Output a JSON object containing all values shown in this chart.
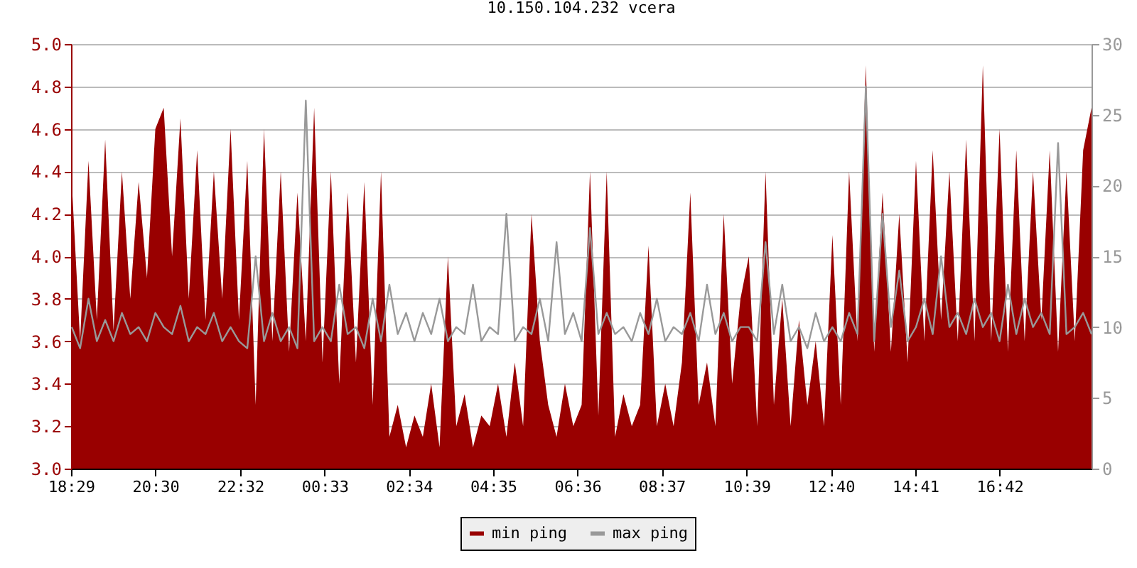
{
  "chart_data": {
    "type": "area",
    "title": "10.150.104.232 vcera",
    "x": [
      "--01-01T18:30",
      "--01-01T18:42",
      "--01-01T18:54",
      "--01-01T19:06",
      "--01-01T19:18",
      "--01-01T19:30",
      "--01-01T19:42",
      "--01-01T19:54",
      "--01-01T20:06",
      "--01-01T20:18",
      "--01-01T20:30",
      "--01-01T20:42",
      "--01-01T20:54",
      "--01-01T21:06",
      "--01-01T21:18",
      "--01-01T21:30",
      "--01-01T21:42",
      "--01-01T21:54",
      "--01-01T22:06",
      "--01-01T22:18",
      "--01-01T22:30",
      "--01-01T22:42",
      "--01-01T22:54",
      "--01-01T23:06",
      "--01-01T23:18",
      "--01-01T23:30",
      "--01-01T23:42",
      "--01-01T23:54",
      "--01-02T00:06",
      "--01-02T00:18",
      "--01-02T00:30",
      "--01-02T00:42",
      "--01-02T00:54",
      "--01-02T01:06",
      "--01-02T01:18",
      "--01-02T01:30",
      "--01-02T01:42",
      "--01-02T01:54",
      "--01-02T02:06",
      "--01-02T02:18",
      "--01-02T02:30",
      "--01-02T02:42",
      "--01-02T02:54",
      "--01-02T03:06",
      "--01-02T03:18",
      "--01-02T03:30",
      "--01-02T03:42",
      "--01-02T03:54",
      "--01-02T04:06",
      "--01-02T04:18",
      "--01-02T04:30",
      "--01-02T04:42",
      "--01-02T04:54",
      "--01-02T05:06",
      "--01-02T05:18",
      "--01-02T05:30",
      "--01-02T05:42",
      "--01-02T05:54",
      "--01-02T06:06",
      "--01-02T06:18",
      "--01-02T06:30",
      "--01-02T06:42",
      "--01-02T06:54",
      "--01-02T07:06",
      "--01-02T07:18",
      "--01-02T07:30",
      "--01-02T07:42",
      "--01-02T07:54",
      "--01-02T08:06",
      "--01-02T08:18",
      "--01-02T08:30",
      "--01-02T08:42",
      "--01-02T08:54",
      "--01-02T09:06",
      "--01-02T09:18",
      "--01-02T09:30",
      "--01-02T09:42",
      "--01-02T09:54",
      "--01-02T10:06",
      "--01-02T10:18",
      "--01-02T10:30",
      "--01-02T10:42",
      "--01-02T10:54",
      "--01-02T11:06",
      "--01-02T11:18",
      "--01-02T11:30",
      "--01-02T11:42",
      "--01-02T11:54",
      "--01-02T12:06",
      "--01-02T12:18",
      "--01-02T12:30",
      "--01-02T12:42",
      "--01-02T12:54",
      "--01-02T13:06",
      "--01-02T13:18",
      "--01-02T13:30",
      "--01-02T13:42",
      "--01-02T13:54",
      "--01-02T14:06",
      "--01-02T14:18",
      "--01-02T14:30",
      "--01-02T14:42",
      "--01-02T14:54",
      "--01-02T15:06",
      "--01-02T15:18",
      "--01-02T15:30",
      "--01-02T15:42",
      "--01-02T15:54",
      "--01-02T16:06",
      "--01-02T16:18",
      "--01-02T16:30",
      "--01-02T16:42",
      "--01-02T16:54",
      "--01-02T17:06",
      "--01-02T17:18",
      "--01-02T17:30",
      "--01-02T17:42",
      "--01-02T17:54",
      "--01-02T18:06",
      "--01-02T18:18",
      "--01-02T18:30",
      "--01-02T18:42",
      "--01-02T18:54"
    ],
    "series": [
      {
        "name": "min ping",
        "color": "#990000",
        "values": [
          4.35,
          3.6,
          4.45,
          3.7,
          4.55,
          3.65,
          4.4,
          3.8,
          4.35,
          3.9,
          4.6,
          4.7,
          4.0,
          4.65,
          3.8,
          4.5,
          3.7,
          4.4,
          3.8,
          4.6,
          3.7,
          4.45,
          3.3,
          4.6,
          3.6,
          4.4,
          3.55,
          4.3,
          3.6,
          4.7,
          3.5,
          4.4,
          3.4,
          4.3,
          3.5,
          4.35,
          3.3,
          4.4,
          3.15,
          3.3,
          3.1,
          3.25,
          3.15,
          3.4,
          3.1,
          4.0,
          3.2,
          3.35,
          3.1,
          3.25,
          3.2,
          3.4,
          3.15,
          3.5,
          3.2,
          4.2,
          3.6,
          3.3,
          3.15,
          3.4,
          3.2,
          3.3,
          4.4,
          3.25,
          4.4,
          3.15,
          3.35,
          3.2,
          3.3,
          4.05,
          3.2,
          3.4,
          3.2,
          3.5,
          4.3,
          3.3,
          3.5,
          3.2,
          4.2,
          3.4,
          3.8,
          4.0,
          3.2,
          4.4,
          3.3,
          3.8,
          3.2,
          3.7,
          3.3,
          3.6,
          3.2,
          4.1,
          3.3,
          4.4,
          3.6,
          4.9,
          3.55,
          4.3,
          3.55,
          4.2,
          3.5,
          4.45,
          3.6,
          4.5,
          3.7,
          4.4,
          3.6,
          4.55,
          3.6,
          4.9,
          3.6,
          4.6,
          3.55,
          4.5,
          3.6,
          4.4,
          3.7,
          4.5,
          3.55,
          4.4,
          3.6,
          4.5,
          4.7
        ]
      },
      {
        "name": "max ping",
        "type": "line",
        "axis": "y2",
        "color": "#999999",
        "values": [
          10,
          8.5,
          12,
          9,
          10.5,
          9,
          11,
          9.5,
          10,
          9,
          11,
          10,
          9.5,
          11.5,
          9,
          10,
          9.5,
          11,
          9,
          10,
          9,
          8.5,
          15,
          9,
          11,
          9,
          10,
          8.5,
          26,
          9,
          10,
          9,
          13,
          9.5,
          10,
          8.5,
          12,
          9,
          13,
          9.5,
          11,
          9,
          11,
          9.5,
          12,
          9,
          10,
          9.5,
          13,
          9,
          10,
          9.5,
          18,
          9,
          10,
          9.5,
          12,
          9,
          16,
          9.5,
          11,
          9,
          17,
          9.5,
          11,
          9.5,
          10,
          9,
          11,
          9.5,
          12,
          9,
          10,
          9.5,
          11,
          9,
          13,
          9.5,
          11,
          9,
          10,
          10,
          9,
          16,
          9.5,
          13,
          9,
          10,
          8.5,
          11,
          9,
          10,
          9,
          11,
          9.5,
          27,
          9,
          18,
          10,
          14,
          9,
          10,
          12,
          9.5,
          15,
          10,
          11,
          9.5,
          12,
          10,
          11,
          9,
          13,
          9.5,
          12,
          10,
          11,
          9.5,
          23,
          9.5,
          10,
          11,
          9.5
        ]
      }
    ],
    "xlim": [
      "--01-01T18:29",
      "--01-02T18:54"
    ],
    "xticks": [
      {
        "value": "--01-01T18:29",
        "label": "18:29"
      },
      {
        "value": "--01-01T20:30",
        "label": "20:30"
      },
      {
        "value": "--01-01T22:32",
        "label": "22:32"
      },
      {
        "value": "--01-02T00:33",
        "label": "00:33"
      },
      {
        "value": "--01-02T02:34",
        "label": "02:34"
      },
      {
        "value": "--01-02T04:35",
        "label": "04:35"
      },
      {
        "value": "--01-02T06:36",
        "label": "06:36"
      },
      {
        "value": "--01-02T08:37",
        "label": "08:37"
      },
      {
        "value": "--01-02T10:39",
        "label": "10:39"
      },
      {
        "value": "--01-02T12:40",
        "label": "12:40"
      },
      {
        "value": "--01-02T14:41",
        "label": "14:41"
      },
      {
        "value": "--01-02T16:42",
        "label": "16:42"
      }
    ],
    "ylim": [
      3,
      5
    ],
    "yticks": [
      {
        "value": 3,
        "label": "3.0"
      },
      {
        "value": 3.2,
        "label": "3.2"
      },
      {
        "value": 3.4,
        "label": "3.4"
      },
      {
        "value": 3.6,
        "label": "3.6"
      },
      {
        "value": 3.8,
        "label": "3.8"
      },
      {
        "value": 4,
        "label": "4.0"
      },
      {
        "value": 4.2,
        "label": "4.2"
      },
      {
        "value": 4.4,
        "label": "4.4"
      },
      {
        "value": 4.6,
        "label": "4.6"
      },
      {
        "value": 4.8,
        "label": "4.8"
      },
      {
        "value": 5,
        "label": "5.0"
      }
    ],
    "y2lim": [
      0,
      30
    ],
    "y2ticks": [
      0,
      5,
      10,
      15,
      20,
      25,
      30
    ],
    "grid": "y",
    "legend": "bottom",
    "line_style": "solid",
    "marker": "none"
  }
}
